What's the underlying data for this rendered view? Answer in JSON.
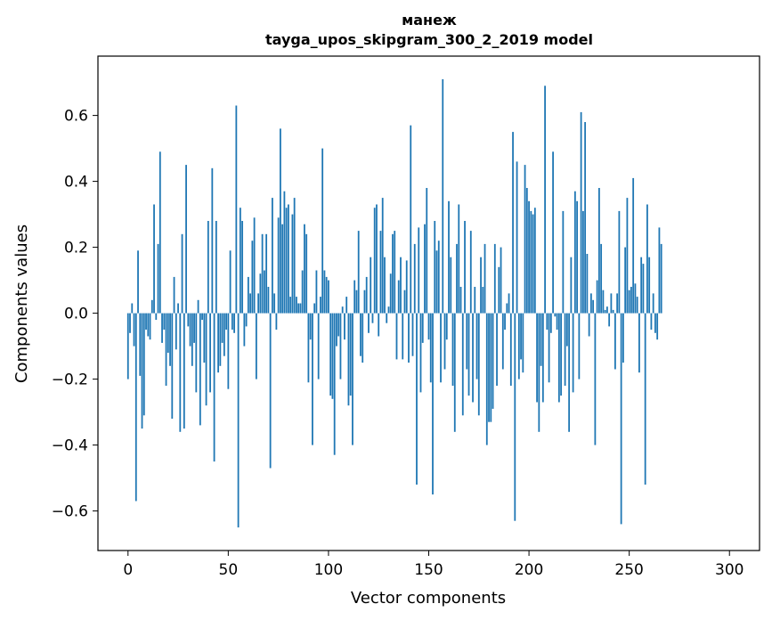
{
  "chart_data": {
    "type": "bar",
    "title": "манеж",
    "subtitle": "tayga_upos_skipgram_300_2_2019 model",
    "xlabel": "Vector components",
    "ylabel": "Components values",
    "xlim": [
      -15,
      315
    ],
    "ylim": [
      -0.72,
      0.78
    ],
    "xticks": [
      0,
      50,
      100,
      150,
      200,
      250,
      300
    ],
    "xtick_labels": [
      "0",
      "50",
      "100",
      "150",
      "200",
      "250",
      "300"
    ],
    "yticks": [
      -0.6,
      -0.4,
      -0.2,
      0.0,
      0.2,
      0.4,
      0.6
    ],
    "ytick_labels": [
      "−0.6",
      "−0.4",
      "−0.2",
      "0.0",
      "0.2",
      "0.4",
      "0.6"
    ],
    "grid": false,
    "bar_color": "#1f77b4",
    "series": [
      {
        "values": [
          -0.2,
          -0.06,
          0.03,
          -0.1,
          -0.57,
          0.19,
          -0.19,
          -0.35,
          -0.31,
          -0.05,
          -0.07,
          -0.08,
          0.04,
          0.33,
          -0.02,
          0.21,
          0.49,
          -0.09,
          -0.05,
          -0.22,
          -0.12,
          -0.16,
          -0.32,
          0.11,
          -0.11,
          0.03,
          -0.36,
          0.24,
          -0.35,
          0.45,
          -0.04,
          -0.1,
          -0.16,
          -0.09,
          -0.24,
          0.04,
          -0.34,
          -0.02,
          -0.15,
          -0.28,
          0.28,
          -0.24,
          0.44,
          -0.45,
          0.28,
          -0.18,
          -0.16,
          -0.09,
          -0.13,
          -0.05,
          -0.23,
          0.19,
          -0.05,
          -0.06,
          0.63,
          -0.65,
          0.32,
          0.28,
          -0.1,
          -0.04,
          0.11,
          0.06,
          0.22,
          0.29,
          -0.2,
          0.06,
          0.12,
          0.24,
          0.13,
          0.24,
          0.08,
          -0.47,
          0.35,
          0.06,
          -0.05,
          0.29,
          0.56,
          0.27,
          0.37,
          0.32,
          0.33,
          0.05,
          0.3,
          0.35,
          0.05,
          0.03,
          0.03,
          0.13,
          0.27,
          0.24,
          -0.21,
          -0.08,
          -0.4,
          0.03,
          0.13,
          -0.2,
          0.05,
          0.5,
          0.13,
          0.11,
          0.1,
          -0.25,
          -0.26,
          -0.43,
          -0.1,
          -0.07,
          -0.2,
          0.02,
          -0.08,
          0.05,
          -0.28,
          -0.25,
          -0.4,
          0.1,
          0.07,
          0.25,
          -0.13,
          -0.15,
          0.07,
          0.11,
          -0.06,
          0.17,
          -0.03,
          0.32,
          0.33,
          -0.07,
          0.25,
          0.35,
          0.17,
          -0.03,
          0.02,
          0.12,
          0.24,
          0.25,
          -0.14,
          0.1,
          0.17,
          -0.14,
          0.07,
          0.16,
          -0.15,
          0.57,
          -0.13,
          0.21,
          -0.52,
          0.26,
          -0.24,
          -0.09,
          0.27,
          0.38,
          -0.08,
          -0.21,
          -0.55,
          0.28,
          0.19,
          0.22,
          -0.21,
          0.71,
          -0.17,
          -0.08,
          0.34,
          0.17,
          -0.22,
          -0.36,
          0.21,
          0.33,
          0.08,
          -0.31,
          0.28,
          -0.17,
          -0.25,
          0.25,
          -0.27,
          0.08,
          -0.2,
          -0.31,
          0.17,
          0.08,
          0.21,
          -0.4,
          -0.33,
          -0.33,
          -0.29,
          0.21,
          -0.22,
          0.14,
          0.2,
          -0.17,
          -0.05,
          0.03,
          0.06,
          -0.22,
          0.55,
          -0.63,
          0.46,
          -0.2,
          -0.14,
          -0.18,
          0.45,
          0.38,
          0.34,
          0.31,
          0.3,
          0.32,
          -0.27,
          -0.36,
          -0.16,
          -0.27,
          0.69,
          -0.05,
          -0.21,
          -0.06,
          0.49,
          -0.01,
          -0.05,
          -0.27,
          -0.25,
          0.31,
          -0.22,
          -0.1,
          -0.36,
          0.17,
          -0.24,
          0.37,
          0.34,
          -0.2,
          0.61,
          0.31,
          0.58,
          0.18,
          -0.07,
          0.06,
          0.04,
          -0.4,
          0.1,
          0.38,
          0.21,
          0.07,
          0.01,
          0.02,
          -0.04,
          0.06,
          0.01,
          -0.17,
          0.06,
          0.31,
          -0.64,
          -0.15,
          0.2,
          0.35,
          0.07,
          0.08,
          0.41,
          0.09,
          0.05,
          -0.18,
          0.17,
          0.15,
          -0.52,
          0.33,
          0.17,
          -0.05,
          0.06,
          -0.06,
          -0.08,
          0.26,
          0.21
        ]
      }
    ]
  }
}
